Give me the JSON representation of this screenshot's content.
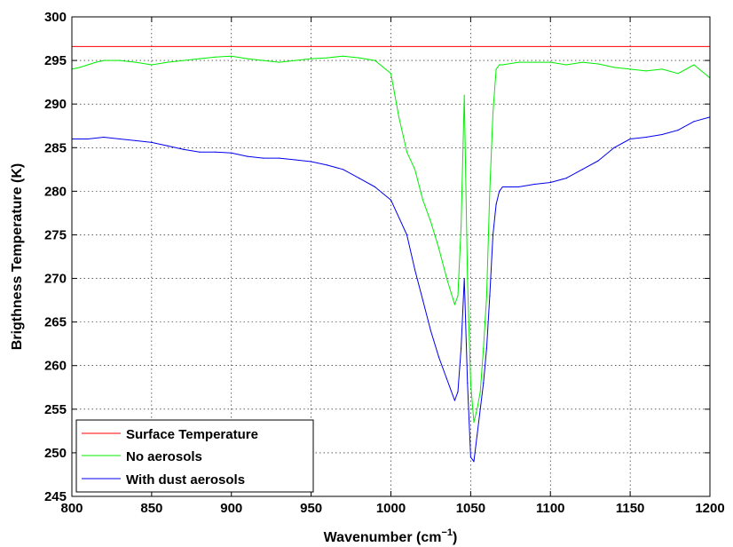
{
  "chart_data": {
    "type": "line",
    "title": "",
    "xlabel": "Wavenumber (cm",
    "xlabel_sup": "−1",
    "xlabel_end": ")",
    "ylabel": "Brigthness Temperature (K)",
    "xlim": [
      800,
      1200
    ],
    "ylim": [
      245,
      300
    ],
    "xticks": [
      800,
      850,
      900,
      950,
      1000,
      1050,
      1100,
      1150,
      1200
    ],
    "yticks": [
      245,
      250,
      255,
      260,
      265,
      270,
      275,
      280,
      285,
      290,
      295,
      300
    ],
    "grid": true,
    "legend_position": "bottom-left",
    "series": [
      {
        "name": "Surface Temperature",
        "color": "#ff0000",
        "x": [
          800,
          1200
        ],
        "y": [
          296.6,
          296.6
        ]
      },
      {
        "name": "No aerosols",
        "color": "#00ee00",
        "x": [
          800,
          805,
          810,
          815,
          820,
          830,
          840,
          850,
          860,
          870,
          880,
          890,
          900,
          910,
          920,
          930,
          940,
          950,
          960,
          970,
          980,
          990,
          1000,
          1005,
          1010,
          1015,
          1020,
          1025,
          1030,
          1035,
          1040,
          1042,
          1044,
          1046,
          1048,
          1050,
          1052,
          1054,
          1056,
          1058,
          1060,
          1062,
          1064,
          1066,
          1068,
          1070,
          1080,
          1090,
          1100,
          1110,
          1120,
          1130,
          1140,
          1150,
          1160,
          1170,
          1180,
          1190,
          1200
        ],
        "y": [
          294.0,
          294.2,
          294.5,
          294.8,
          295.0,
          295.0,
          294.8,
          294.5,
          294.8,
          295.0,
          295.2,
          295.4,
          295.5,
          295.2,
          295.0,
          294.8,
          295.0,
          295.2,
          295.3,
          295.5,
          295.3,
          295.0,
          293.5,
          288.5,
          284.5,
          282.5,
          279.0,
          276.5,
          273.5,
          270.0,
          267.0,
          268.0,
          276.0,
          291.0,
          270.0,
          258.0,
          253.5,
          255.0,
          257.0,
          262.0,
          268.0,
          280.0,
          289.0,
          294.0,
          294.5,
          294.5,
          294.8,
          294.8,
          294.8,
          294.5,
          294.8,
          294.6,
          294.2,
          294.0,
          293.8,
          294.0,
          293.5,
          294.5,
          293.0
        ]
      },
      {
        "name": "With dust aerosols",
        "color": "#0000ee",
        "x": [
          800,
          810,
          820,
          830,
          840,
          850,
          860,
          870,
          880,
          890,
          900,
          910,
          920,
          930,
          940,
          950,
          960,
          970,
          980,
          990,
          1000,
          1010,
          1015,
          1020,
          1025,
          1030,
          1035,
          1040,
          1042,
          1044,
          1046,
          1048,
          1050,
          1052,
          1054,
          1056,
          1058,
          1060,
          1062,
          1064,
          1066,
          1068,
          1070,
          1080,
          1090,
          1100,
          1110,
          1120,
          1130,
          1140,
          1150,
          1160,
          1170,
          1180,
          1190,
          1200
        ],
        "y": [
          286.0,
          286.0,
          286.2,
          286.0,
          285.8,
          285.6,
          285.2,
          284.8,
          284.5,
          284.5,
          284.4,
          284.0,
          283.8,
          283.8,
          283.6,
          283.4,
          283.0,
          282.5,
          281.5,
          280.5,
          279.0,
          275.0,
          271.0,
          267.5,
          264.0,
          261.0,
          258.5,
          256.0,
          257.0,
          262.0,
          270.0,
          258.0,
          249.5,
          249.0,
          252.0,
          255.0,
          258.0,
          262.0,
          268.0,
          275.0,
          278.5,
          280.0,
          280.5,
          280.5,
          280.8,
          281.0,
          281.5,
          282.5,
          283.5,
          285.0,
          286.0,
          286.2,
          286.5,
          287.0,
          288.0,
          288.5
        ]
      }
    ]
  }
}
